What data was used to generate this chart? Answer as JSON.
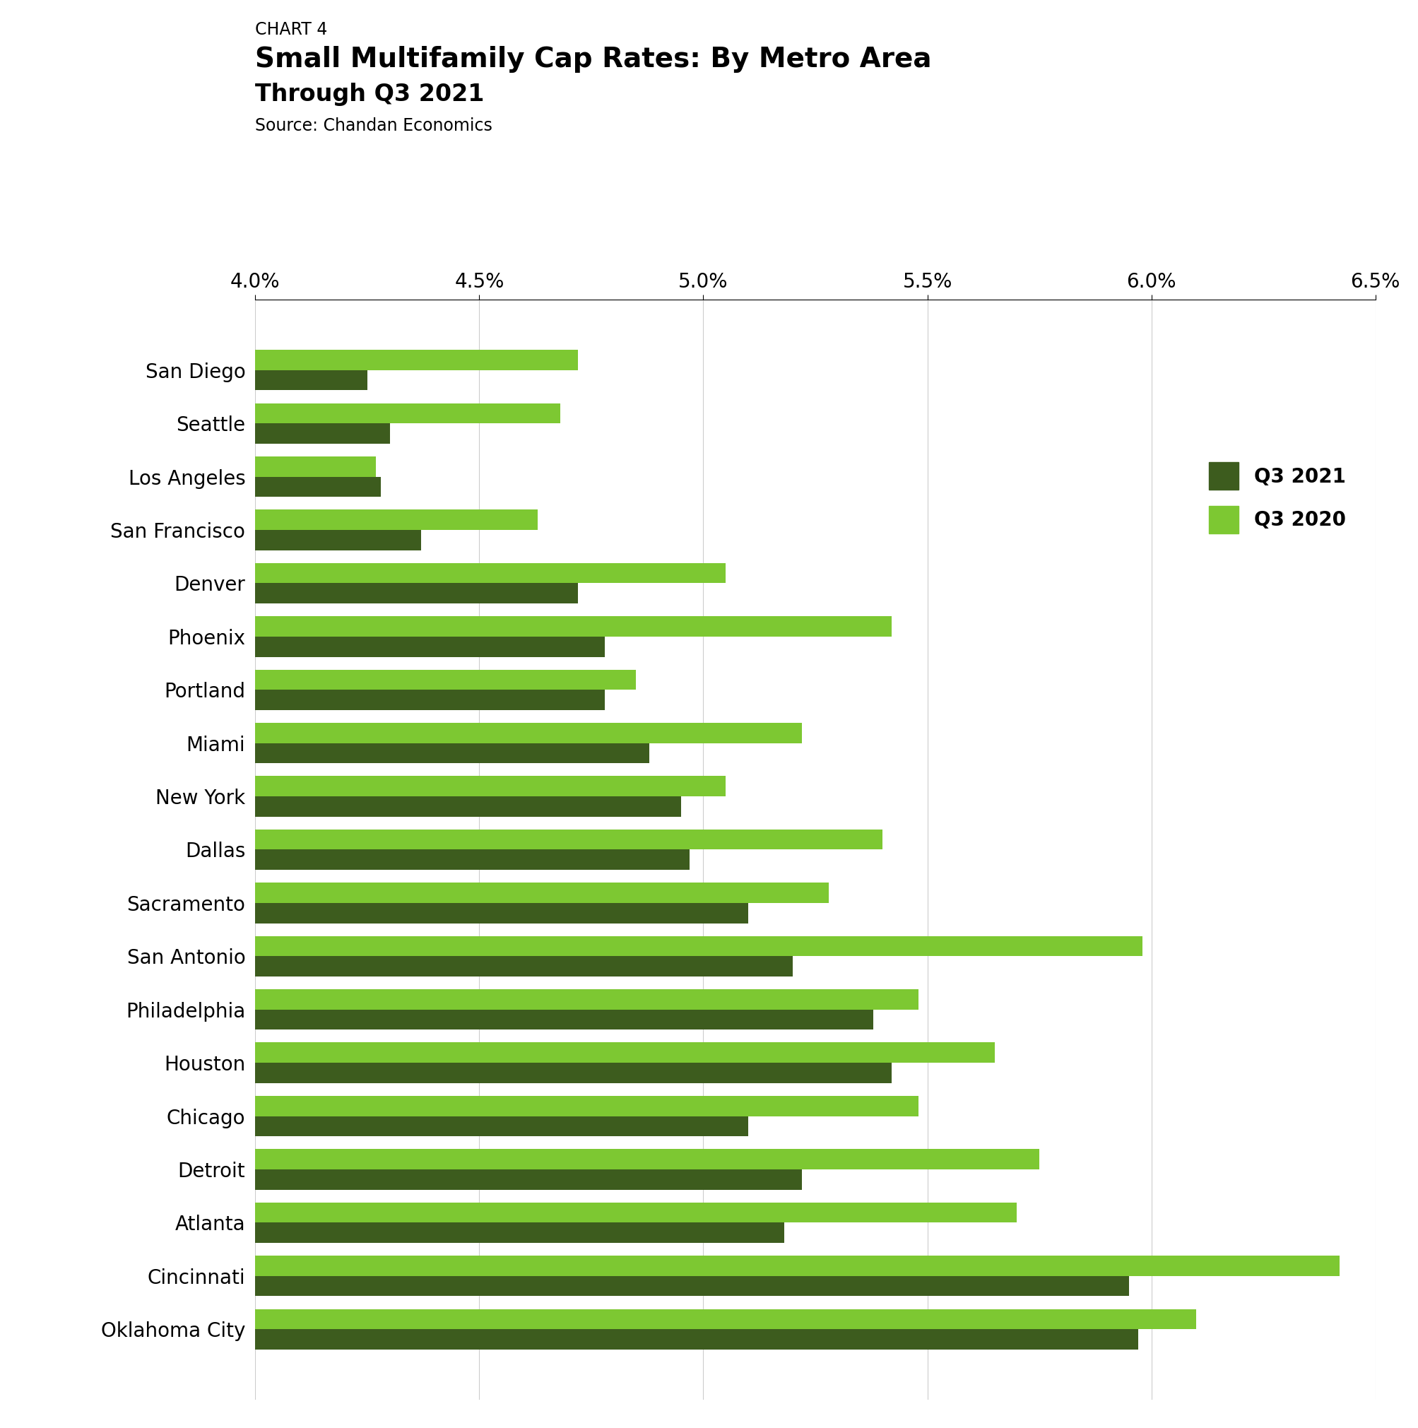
{
  "chart_label": "CHART 4",
  "title": "Small Multifamily Cap Rates: By Metro Area",
  "subtitle": "Through Q3 2021",
  "source": "Source: Chandan Economics",
  "categories": [
    "San Diego",
    "Seattle",
    "Los Angeles",
    "San Francisco",
    "Denver",
    "Phoenix",
    "Portland",
    "Miami",
    "New York",
    "Dallas",
    "Sacramento",
    "San Antonio",
    "Philadelphia",
    "Houston",
    "Chicago",
    "Detroit",
    "Atlanta",
    "Cincinnati",
    "Oklahoma City"
  ],
  "q3_2021": [
    0.0425,
    0.043,
    0.0428,
    0.0437,
    0.0472,
    0.0478,
    0.0478,
    0.0488,
    0.0495,
    0.0497,
    0.051,
    0.052,
    0.0538,
    0.0542,
    0.051,
    0.0522,
    0.0518,
    0.0595,
    0.0597
  ],
  "q3_2020": [
    0.0472,
    0.0468,
    0.0427,
    0.0463,
    0.0505,
    0.0542,
    0.0485,
    0.0522,
    0.0505,
    0.054,
    0.0528,
    0.0598,
    0.0548,
    0.0565,
    0.0548,
    0.0575,
    0.057,
    0.0642,
    0.061
  ],
  "color_2021": "#3d5c1e",
  "color_2020": "#7dc832",
  "xlim": [
    0.04,
    0.065
  ],
  "xticks": [
    0.04,
    0.045,
    0.05,
    0.055,
    0.06,
    0.065
  ],
  "xtick_labels": [
    "4.0%",
    "4.5%",
    "5.0%",
    "5.5%",
    "6.0%",
    "6.5%"
  ],
  "background_color": "#ffffff",
  "bar_height": 0.38,
  "title_fontsize": 28,
  "subtitle_fontsize": 24,
  "source_fontsize": 17,
  "chart_label_fontsize": 17,
  "axis_fontsize": 20,
  "category_fontsize": 20,
  "legend_fontsize": 20
}
